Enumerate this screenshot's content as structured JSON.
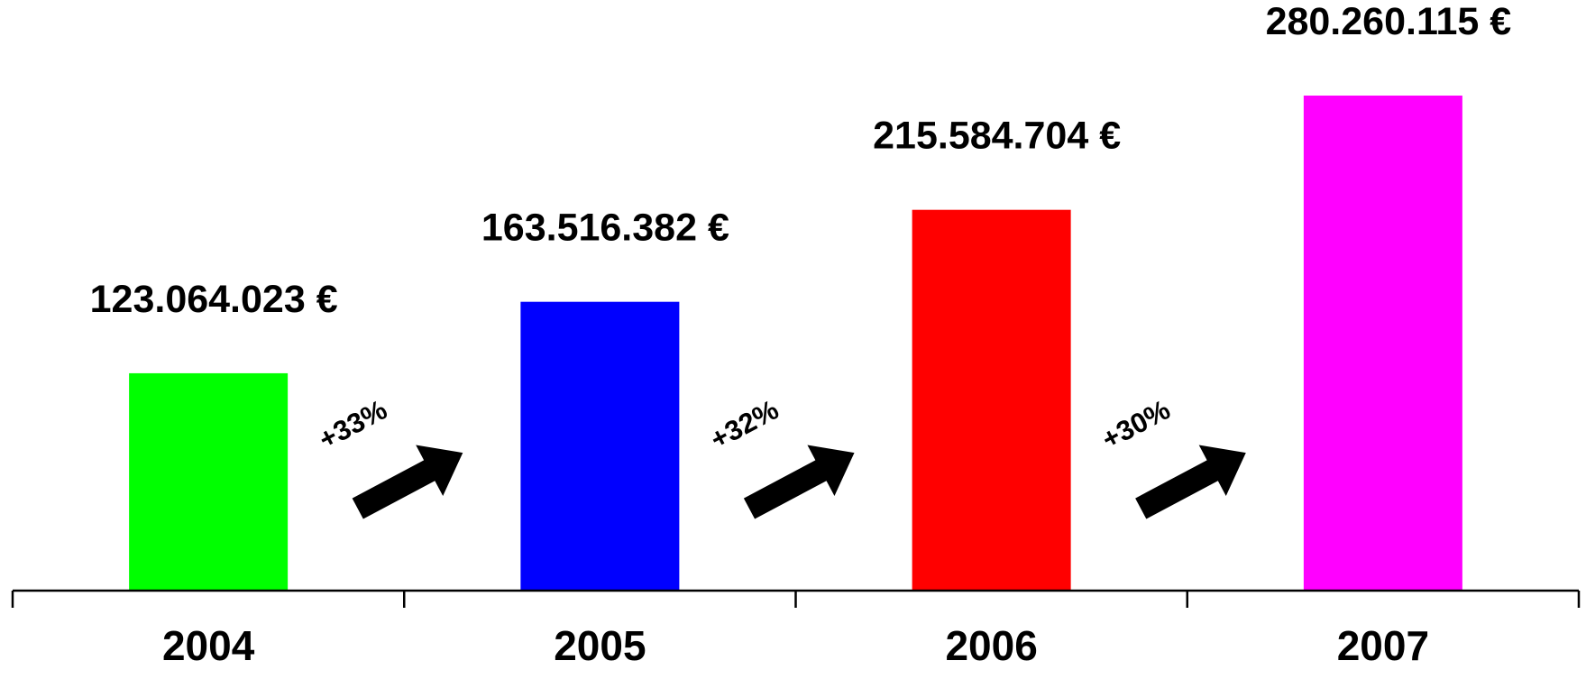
{
  "chart_data": {
    "type": "bar",
    "categories": [
      "2004",
      "2005",
      "2006",
      "2007"
    ],
    "values": [
      123064023,
      163516382,
      215584704,
      280260115
    ],
    "value_labels": [
      "123.064.023 €",
      "163.516.382 €",
      "215.584.704 €",
      "280.260.115 €"
    ],
    "colors": [
      "#00ff00",
      "#0000ff",
      "#ff0000",
      "#ff00ff"
    ],
    "growth_labels": [
      "+33%",
      "+32%",
      "+30%"
    ],
    "title": "",
    "xlabel": "",
    "ylabel": "",
    "ylim": [
      0,
      280260115
    ],
    "grid": false,
    "legend": "none"
  }
}
